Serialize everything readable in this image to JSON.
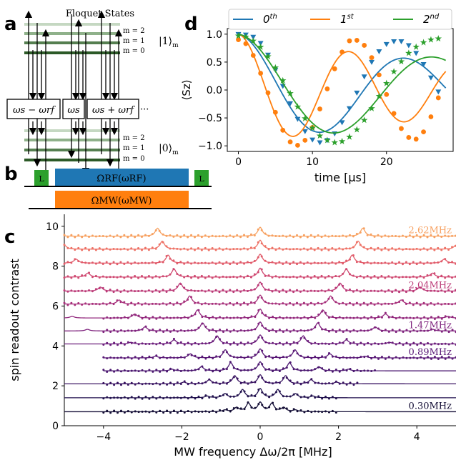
{
  "panels": {
    "a": {
      "letter": "a",
      "title": "Floquet States",
      "upper_levels": [
        "m = 2",
        "m = 1",
        "m = 0"
      ],
      "upper_state": "|1⟩",
      "upper_state_sub": "m",
      "lower_levels": [
        "m = 2",
        "m = 1",
        "m = 0"
      ],
      "lower_state": "|0⟩",
      "lower_state_sub": "m",
      "boxes": [
        "ωs − ωrf",
        "ωs",
        "ωs + ωrf"
      ],
      "ellipsis": "···"
    },
    "b": {
      "letter": "b",
      "laser_label": "L",
      "rf_pulse_label": "ΩRF(ωRF)",
      "mw_pulse_label": "ΩMW(ωMW)",
      "colors": {
        "laser": "#2ca02c",
        "rf": "#1f77b4",
        "mw": "#ff7f0e"
      }
    }
  },
  "chart_data": [
    {
      "panel": "d",
      "type": "line",
      "xlabel": "time [μs]",
      "ylabel": "⟨Sz⟩",
      "xlim": [
        -1.5,
        29
      ],
      "ylim": [
        -1.1,
        1.1
      ],
      "xticks": [
        0,
        10,
        20
      ],
      "yticks": [
        -1.0,
        -0.5,
        0.0,
        0.5,
        1.0
      ],
      "ytick_labels": [
        "−1.0",
        "−0.5",
        "0.0",
        "0.5",
        "1.0"
      ],
      "legend_position": "top",
      "series": [
        {
          "name": "0th",
          "color": "#1f77b4",
          "marker": "triangle-down",
          "fit": {
            "period": 22.6,
            "tau": 40
          },
          "points": [
            [
              0,
              1.0
            ],
            [
              1,
              0.99
            ],
            [
              2,
              0.95
            ],
            [
              3,
              0.84
            ],
            [
              4,
              0.63
            ],
            [
              5,
              0.36
            ],
            [
              6,
              0.07
            ],
            [
              7,
              -0.24
            ],
            [
              8,
              -0.52
            ],
            [
              9,
              -0.74
            ],
            [
              10,
              -0.89
            ],
            [
              11,
              -0.94
            ],
            [
              12,
              -0.9
            ],
            [
              13,
              -0.78
            ],
            [
              14,
              -0.58
            ],
            [
              15,
              -0.33
            ],
            [
              16,
              -0.05
            ],
            [
              17,
              0.24
            ],
            [
              18,
              0.5
            ],
            [
              19,
              0.69
            ],
            [
              20,
              0.82
            ],
            [
              21,
              0.87
            ],
            [
              22,
              0.87
            ],
            [
              23,
              0.8
            ],
            [
              24,
              0.66
            ],
            [
              25,
              0.46
            ],
            [
              26,
              0.22
            ],
            [
              27,
              -0.03
            ]
          ]
        },
        {
          "name": "1st",
          "color": "#ff7f0e",
          "marker": "circle",
          "fit": {
            "period": 15.0,
            "tau": 40
          },
          "points": [
            [
              0,
              0.9
            ],
            [
              1,
              0.83
            ],
            [
              2,
              0.62
            ],
            [
              3,
              0.3
            ],
            [
              4,
              -0.05
            ],
            [
              5,
              -0.4
            ],
            [
              6,
              -0.72
            ],
            [
              7,
              -0.93
            ],
            [
              8,
              -0.99
            ],
            [
              9,
              -0.9
            ],
            [
              10,
              -0.67
            ],
            [
              11,
              -0.34
            ],
            [
              12,
              0.02
            ],
            [
              13,
              0.38
            ],
            [
              14,
              0.68
            ],
            [
              15,
              0.88
            ],
            [
              16,
              0.89
            ],
            [
              17,
              0.8
            ],
            [
              18,
              0.58
            ],
            [
              19,
              0.27
            ],
            [
              20,
              -0.08
            ],
            [
              21,
              -0.42
            ],
            [
              22,
              -0.69
            ],
            [
              23,
              -0.85
            ],
            [
              24,
              -0.88
            ],
            [
              25,
              -0.75
            ],
            [
              26,
              -0.48
            ],
            [
              27,
              -0.14
            ]
          ]
        },
        {
          "name": "2nd",
          "color": "#2ca02c",
          "marker": "star",
          "fit": {
            "period": 26.4,
            "tau": 50
          },
          "points": [
            [
              0,
              0.97
            ],
            [
              1,
              0.95
            ],
            [
              2,
              0.88
            ],
            [
              3,
              0.77
            ],
            [
              4,
              0.6
            ],
            [
              5,
              0.4
            ],
            [
              6,
              0.17
            ],
            [
              7,
              -0.06
            ],
            [
              8,
              -0.3
            ],
            [
              9,
              -0.51
            ],
            [
              10,
              -0.68
            ],
            [
              11,
              -0.82
            ],
            [
              12,
              -0.9
            ],
            [
              13,
              -0.94
            ],
            [
              14,
              -0.92
            ],
            [
              15,
              -0.84
            ],
            [
              16,
              -0.71
            ],
            [
              17,
              -0.54
            ],
            [
              18,
              -0.33
            ],
            [
              19,
              -0.11
            ],
            [
              20,
              0.12
            ],
            [
              21,
              0.33
            ],
            [
              22,
              0.51
            ],
            [
              23,
              0.66
            ],
            [
              24,
              0.77
            ],
            [
              25,
              0.85
            ],
            [
              26,
              0.9
            ],
            [
              27,
              0.92
            ]
          ]
        }
      ]
    },
    {
      "panel": "c",
      "type": "line",
      "xlabel": "MW frequency Δω/2π [MHz]",
      "ylabel": "spin readout contrast",
      "xlim": [
        -5,
        5
      ],
      "ylim": [
        0,
        10.6
      ],
      "xticks": [
        -4,
        -2,
        0,
        2,
        4
      ],
      "xtick_labels": [
        "−4",
        "−2",
        "0",
        "2",
        "4"
      ],
      "yticks": [
        0,
        2,
        4,
        6,
        8,
        10
      ],
      "series": [
        {
          "rf_freq_MHz": 0.3,
          "baseline": 0.7,
          "peak_height": 0.45,
          "color": "#140e36",
          "annotation": "0.30MHz",
          "fit_x_range": [
            -5,
            5
          ],
          "data_x_range": [
            -4,
            2
          ]
        },
        {
          "rf_freq_MHz": 0.45,
          "baseline": 1.4,
          "peak_height": 0.45,
          "color": "#241450",
          "annotation": "",
          "fit_x_range": [
            -5,
            5
          ],
          "data_x_range": [
            -4,
            2
          ]
        },
        {
          "rf_freq_MHz": 0.65,
          "baseline": 2.1,
          "peak_height": 0.45,
          "color": "#3a1562",
          "annotation": "",
          "fit_x_range": [
            -5,
            5
          ],
          "data_x_range": [
            -4,
            2.5
          ]
        },
        {
          "rf_freq_MHz": 0.75,
          "baseline": 2.75,
          "peak_height": 0.45,
          "color": "#4b1770",
          "annotation": "",
          "fit_x_range": [
            -4,
            5
          ],
          "data_x_range": [
            -4,
            3
          ]
        },
        {
          "rf_freq_MHz": 0.89,
          "baseline": 3.4,
          "peak_height": 0.45,
          "color": "#5a1a77",
          "annotation": "0.89MHz",
          "fit_x_range": [
            -4,
            5
          ],
          "data_x_range": [
            -4,
            5
          ]
        },
        {
          "rf_freq_MHz": 1.1,
          "baseline": 4.1,
          "peak_height": 0.45,
          "color": "#6c1e7c",
          "annotation": "",
          "fit_x_range": [
            -5,
            5
          ],
          "data_x_range": [
            -4,
            5
          ]
        },
        {
          "rf_freq_MHz": 1.47,
          "baseline": 4.75,
          "peak_height": 0.45,
          "color": "#7f237e",
          "annotation": "1.47MHz",
          "fit_x_range": [
            -5,
            5
          ],
          "data_x_range": [
            -4,
            5
          ]
        },
        {
          "rf_freq_MHz": 1.6,
          "baseline": 5.4,
          "peak_height": 0.45,
          "color": "#932a7e",
          "annotation": "",
          "fit_x_range": [
            -5,
            5
          ],
          "data_x_range": [
            -4,
            5
          ]
        },
        {
          "rf_freq_MHz": 1.8,
          "baseline": 6.1,
          "peak_height": 0.45,
          "color": "#a7317c",
          "annotation": "",
          "fit_x_range": [
            -5,
            5
          ],
          "data_x_range": [
            -5,
            5
          ]
        },
        {
          "rf_freq_MHz": 2.04,
          "baseline": 6.75,
          "peak_height": 0.45,
          "color": "#bc3b78",
          "annotation": "2.04MHz",
          "fit_x_range": [
            -5,
            5
          ],
          "data_x_range": [
            -5,
            5
          ]
        },
        {
          "rf_freq_MHz": 2.2,
          "baseline": 7.45,
          "peak_height": 0.45,
          "color": "#d04a72",
          "annotation": "",
          "fit_x_range": [
            -5,
            5
          ],
          "data_x_range": [
            -5,
            5
          ]
        },
        {
          "rf_freq_MHz": 2.35,
          "baseline": 8.15,
          "peak_height": 0.45,
          "color": "#e15c6b",
          "annotation": "",
          "fit_x_range": [
            -5,
            5
          ],
          "data_x_range": [
            -5,
            5
          ]
        },
        {
          "rf_freq_MHz": 2.5,
          "baseline": 8.85,
          "peak_height": 0.45,
          "color": "#ee7266",
          "annotation": "",
          "fit_x_range": [
            -5,
            5
          ],
          "data_x_range": [
            -5,
            5
          ]
        },
        {
          "rf_freq_MHz": 2.62,
          "baseline": 9.5,
          "peak_height": 0.45,
          "color": "#f7a161",
          "annotation": "2.62MHz",
          "fit_x_range": [
            -5,
            5
          ],
          "data_x_range": [
            -5,
            5
          ]
        }
      ]
    }
  ]
}
